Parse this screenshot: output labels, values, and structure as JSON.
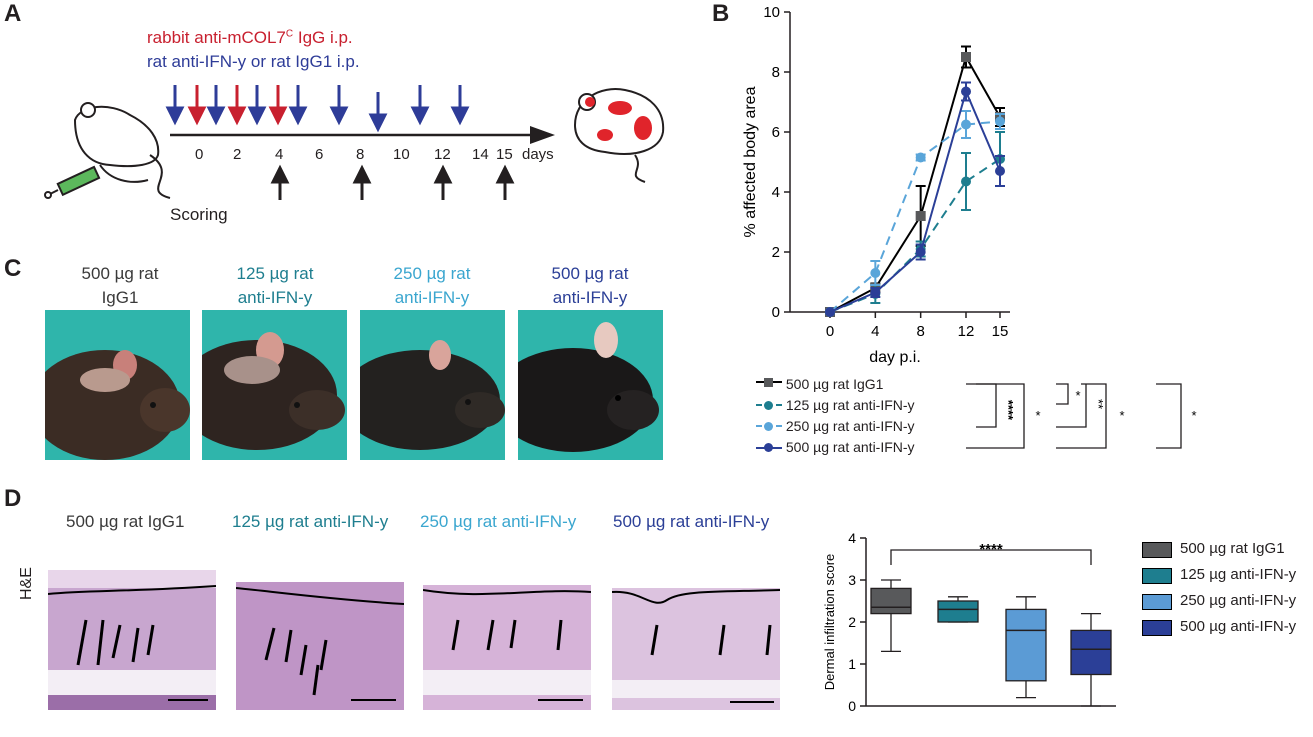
{
  "panels": {
    "a": "A",
    "b": "B",
    "c": "C",
    "d": "D"
  },
  "panel_a": {
    "line1": "rabbit anti-mCOL7",
    "line1_sup": "C",
    "line1_tail": " IgG i.p.",
    "line2": "rat anti-IFN-y or rat IgG1 i.p.",
    "timeline_ticks": [
      "0",
      "2",
      "4",
      "6",
      "8",
      "10",
      "12",
      "14",
      "15"
    ],
    "timeline_unit": "days",
    "scoring_label": "Scoring",
    "colors": {
      "red": "#c8202f",
      "blue": "#2e3c98"
    }
  },
  "panel_c": {
    "groups": [
      {
        "line1": "500 µg rat",
        "line2": "IgG1"
      },
      {
        "line1": "125 µg rat",
        "line2": "anti-IFN-y"
      },
      {
        "line1": "250 µg rat",
        "line2": "anti-IFN-y"
      },
      {
        "line1": "500 µg rat",
        "line2": "anti-IFN-y"
      }
    ]
  },
  "panel_d": {
    "stain_label": "H&E",
    "groups": [
      "500 µg rat IgG1",
      "125 µg rat anti-IFN-y",
      "250 µg rat anti-IFN-y",
      "500 µg rat anti-IFN-y"
    ]
  },
  "chart_data": [
    {
      "type": "line",
      "title": "",
      "xlabel": "day p.i.",
      "ylabel": "% affected body area",
      "x": [
        0,
        4,
        8,
        12,
        15
      ],
      "xticks": [
        "0",
        "4",
        "8",
        "12",
        "15"
      ],
      "ylim": [
        0,
        10
      ],
      "yticks": [
        "0",
        "2",
        "4",
        "6",
        "8",
        "10"
      ],
      "series": [
        {
          "name": "500 µg rat IgG1",
          "color": "#000000",
          "marker": "square",
          "dashed": false,
          "values": [
            0,
            0.8,
            3.2,
            8.5,
            6.5
          ],
          "errors": [
            0,
            0.15,
            1.0,
            0.35,
            0.3
          ]
        },
        {
          "name": "125 µg rat anti-IFN-y",
          "color": "#1e7e8f",
          "marker": "circle",
          "dashed": true,
          "values": [
            0,
            0.6,
            2.1,
            4.35,
            5.1
          ],
          "errors": [
            0,
            0.3,
            0.25,
            0.95,
            0.9
          ]
        },
        {
          "name": "250 µg rat anti-IFN-y",
          "color": "#5aa5d9",
          "marker": "circle",
          "dashed": true,
          "values": [
            0,
            1.3,
            5.15,
            6.25,
            6.35
          ],
          "errors": [
            0,
            0.4,
            0.1,
            0.45,
            0.25
          ]
        },
        {
          "name": "500 µg rat anti-IFN-y",
          "color": "#2b3f97",
          "marker": "circle",
          "dashed": false,
          "values": [
            0,
            0.65,
            2.0,
            7.35,
            4.7
          ],
          "errors": [
            0,
            0.15,
            0.25,
            0.3,
            0.5
          ]
        }
      ],
      "significance": [
        "****",
        "*",
        "*",
        "**",
        "*",
        "*"
      ]
    },
    {
      "type": "box",
      "title": "",
      "xlabel": "",
      "ylabel": "Dermal infiltration score",
      "ylim": [
        0,
        4
      ],
      "yticks": [
        "0",
        "1",
        "2",
        "3",
        "4"
      ],
      "boxes": [
        {
          "name": "500 µg rat IgG1",
          "color": "#58595b",
          "min": 1.3,
          "q1": 2.2,
          "median": 2.35,
          "q3": 2.8,
          "max": 3.0
        },
        {
          "name": "125 µg anti-IFN-y",
          "color": "#1e7e8f",
          "min": 2.0,
          "q1": 2.0,
          "median": 2.3,
          "q3": 2.5,
          "max": 2.6
        },
        {
          "name": "250 µg anti-IFN-y",
          "color": "#5b9bd5",
          "min": 0.2,
          "q1": 0.6,
          "median": 1.8,
          "q3": 2.3,
          "max": 2.6
        },
        {
          "name": "500 µg anti-IFN-y",
          "color": "#2b3f97",
          "min": 0.0,
          "q1": 0.75,
          "median": 1.35,
          "q3": 1.8,
          "max": 2.2
        }
      ],
      "significance": "****"
    }
  ]
}
